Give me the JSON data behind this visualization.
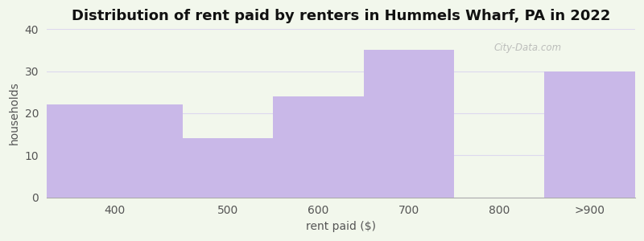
{
  "title": "Distribution of rent paid by renters in Hummels Wharf, PA in 2022",
  "xlabel": "rent paid ($)",
  "ylabel": "households",
  "categories": [
    "400",
    "500",
    "600",
    "700",
    "800",
    ">900"
  ],
  "values": [
    22,
    14,
    24,
    35,
    0,
    30
  ],
  "bar_color": "#c9b8e8",
  "bg_color": "#f2f7ec",
  "ylim": [
    0,
    40
  ],
  "yticks": [
    0,
    10,
    20,
    30,
    40
  ],
  "title_fontsize": 13,
  "axis_label_fontsize": 10,
  "tick_fontsize": 10,
  "tick_color": "#555555",
  "label_color": "#555555",
  "watermark_text": "City-Data.com",
  "grid_color": "#ddd8ee",
  "bar_left_edges": [
    300,
    450,
    550,
    650,
    750,
    850
  ],
  "bar_right_edges": [
    450,
    550,
    650,
    750,
    850,
    950
  ],
  "xlim": [
    300,
    950
  ]
}
